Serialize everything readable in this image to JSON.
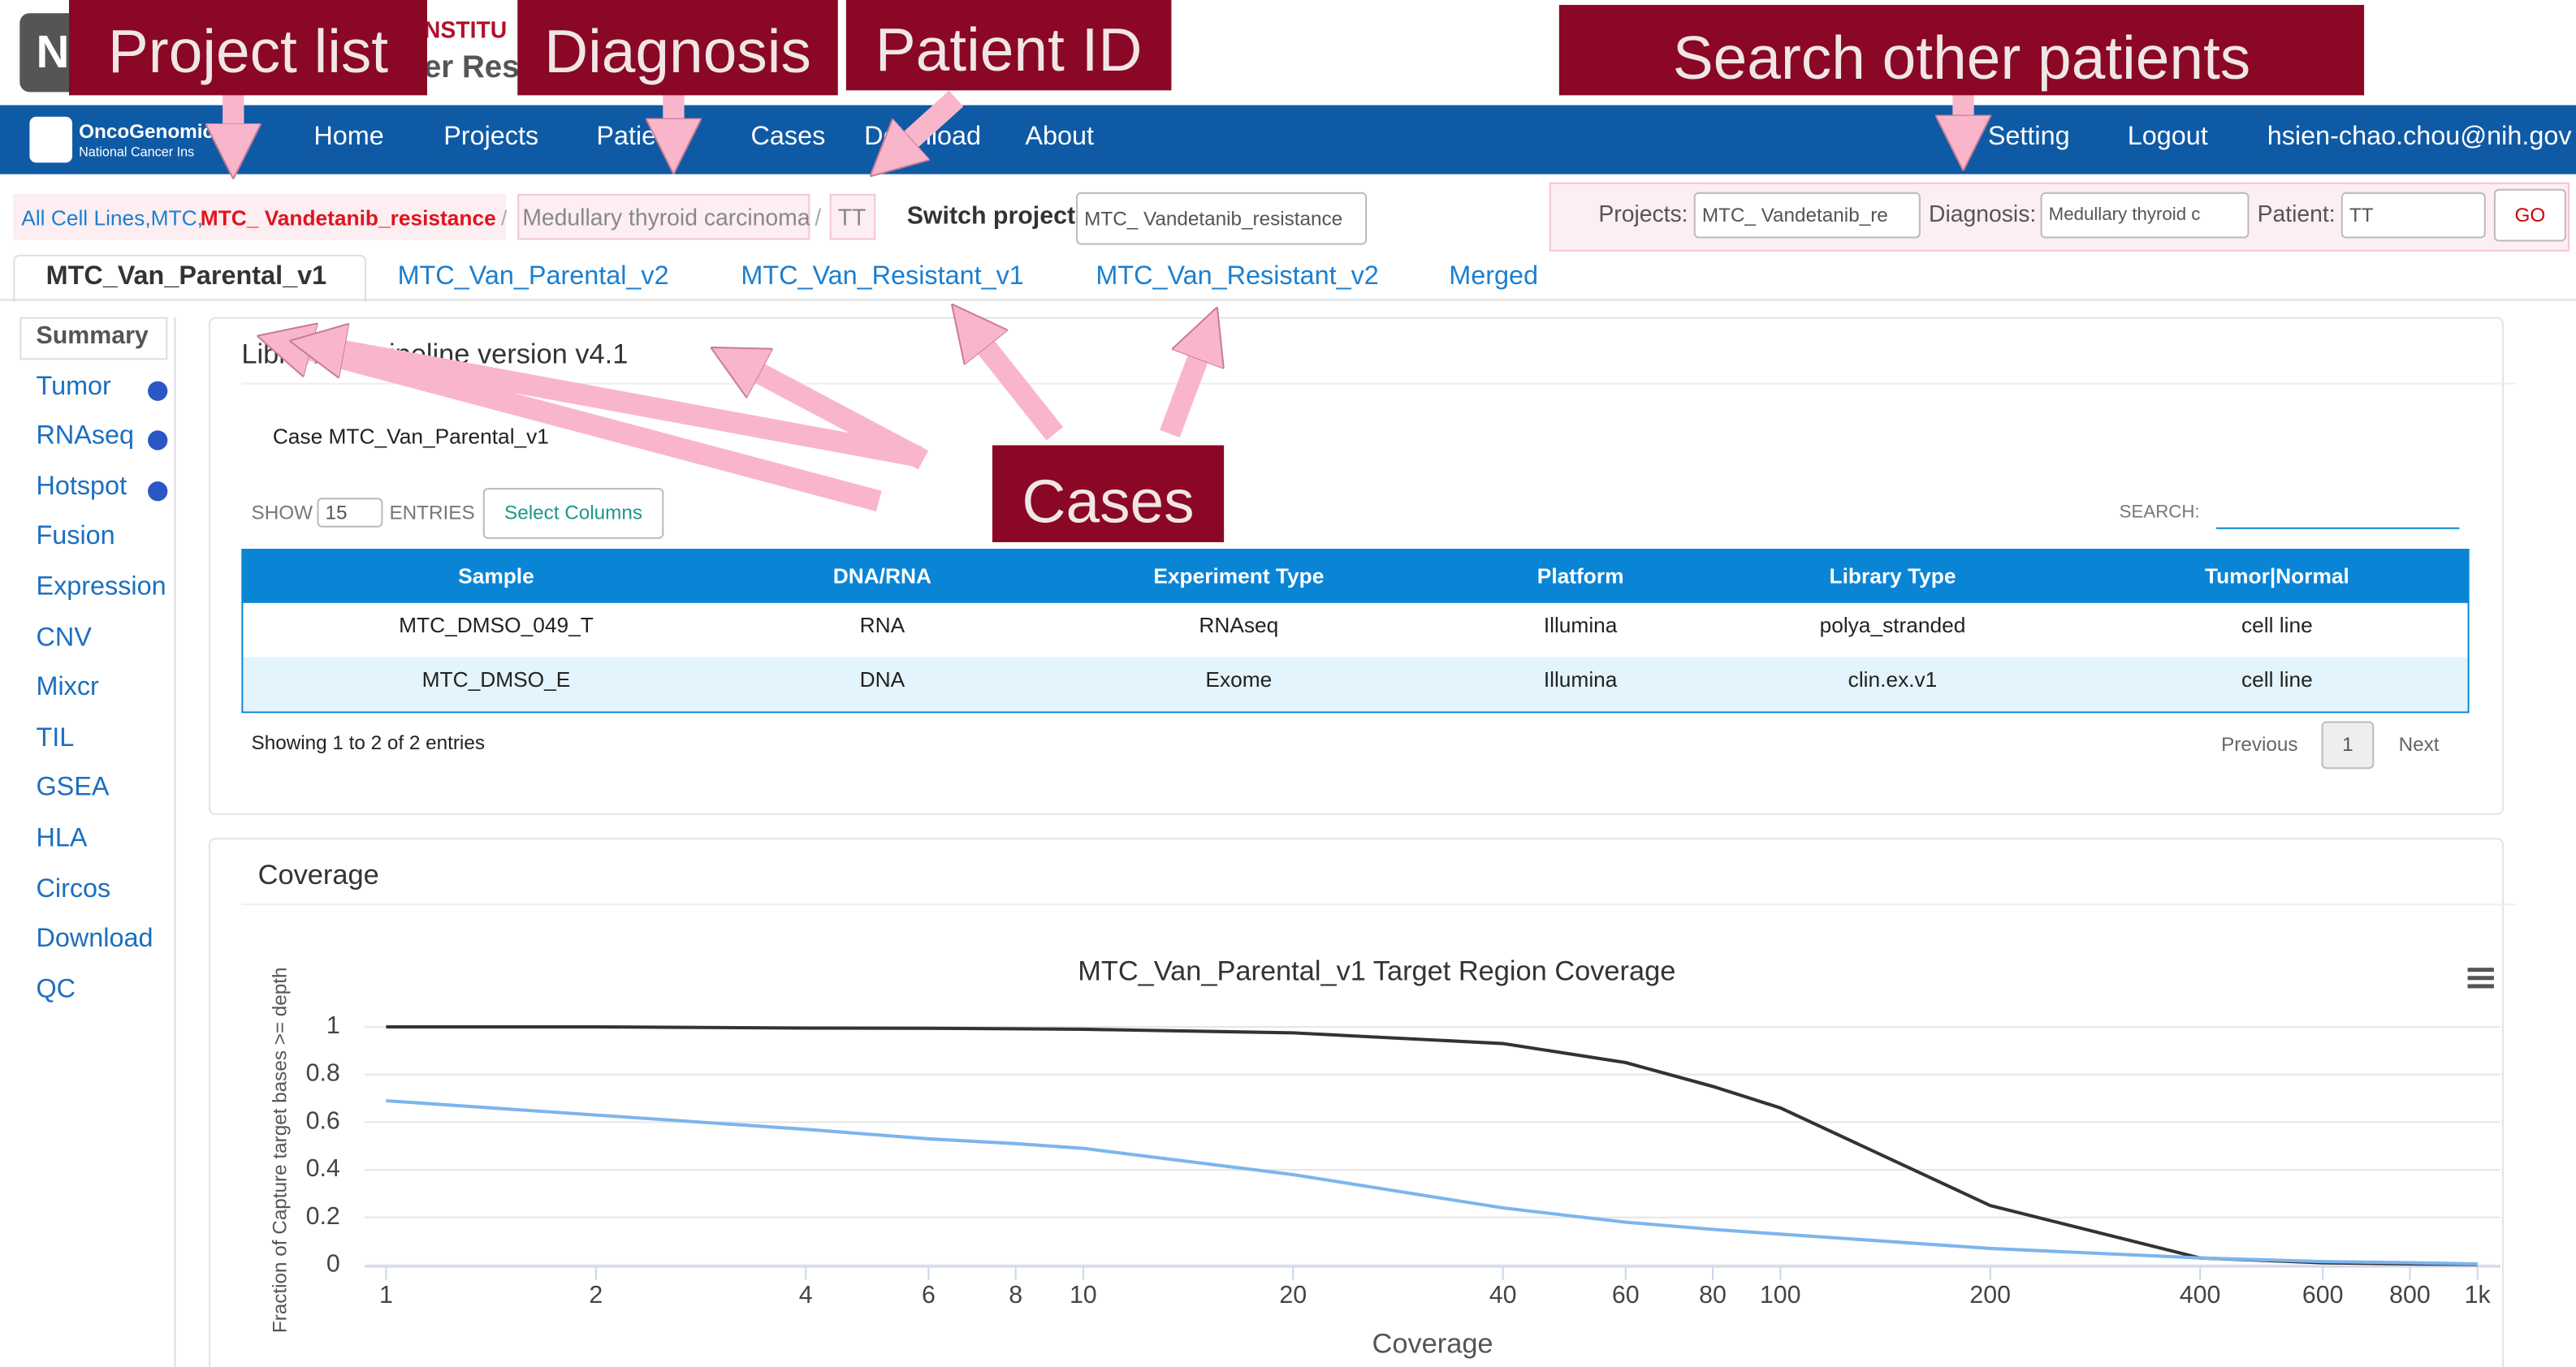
{
  "header": {
    "logo": "N",
    "institute_fragment": "NSTITU",
    "subtitle_fragment": "er Res"
  },
  "annotations": {
    "project_list": "Project list",
    "diagnosis": "Diagnosis",
    "patient_id": "Patient ID",
    "search": "Search other patients",
    "cases": "Cases"
  },
  "nav": {
    "brand": "OncoGenomic",
    "brand_sub": "National Cancer Ins",
    "items": [
      "Home",
      "Projects",
      "Patie",
      "Cases",
      "Download",
      "About"
    ],
    "right": [
      "Setting",
      "Logout",
      "hsien-chao.chou@nih.gov"
    ]
  },
  "breadcrumb": {
    "path": "All Cell Lines,MTC,",
    "project": "MTC_ Vandetanib_resistance",
    "sep": "/",
    "diagnosis": "Medullary thyroid carcinoma",
    "patient": "TT",
    "switch_label": "Switch project:",
    "switch_value": "MTC_ Vandetanib_resistance"
  },
  "search": {
    "projects_label": "Projects:",
    "projects_value": "MTC_ Vandetanib_re",
    "diagnosis_label": "Diagnosis:",
    "diagnosis_value": "Medullary thyroid c",
    "patient_label": "Patient:",
    "patient_value": "TT",
    "go": "GO"
  },
  "tabs": [
    "MTC_Van_Parental_v1",
    "MTC_Van_Parental_v2",
    "MTC_Van_Resistant_v1",
    "MTC_Van_Resistant_v2",
    "Merged"
  ],
  "sidebar": [
    "Summary",
    "Tumor",
    "RNAseq",
    "Hotspot",
    "Fusion",
    "Expression",
    "CNV",
    "Mixcr",
    "TIL",
    "GSEA",
    "HLA",
    "Circos",
    "Download",
    "QC"
  ],
  "libraries": {
    "title": "Libraries - pipeline version v4.1",
    "case": "Case MTC_Van_Parental_v1",
    "show": "SHOW",
    "page_size": "15",
    "entries": "ENTRIES",
    "select_columns": "Select Columns",
    "search": "SEARCH:",
    "table": {
      "columns": [
        "Sample",
        "DNA/RNA",
        "Experiment Type",
        "Platform",
        "Library Type",
        "Tumor|Normal"
      ],
      "rows": [
        [
          "MTC_DMSO_049_T",
          "RNA",
          "RNAseq",
          "Illumina",
          "polya_stranded",
          "cell line"
        ],
        [
          "MTC_DMSO_E",
          "DNA",
          "Exome",
          "Illumina",
          "clin.ex.v1",
          "cell line"
        ]
      ]
    },
    "info": "Showing 1 to 2 of 2 entries",
    "previous": "Previous",
    "page": "1",
    "next": "Next"
  },
  "coverage": {
    "title": "Coverage"
  },
  "chart_data": {
    "type": "line",
    "title": "MTC_Van_Parental_v1 Target Region Coverage",
    "x_label": "Coverage",
    "y_label": "Fraction of Capture target bases >= depth",
    "log_x": true,
    "grid": true,
    "x": [
      1,
      2,
      4,
      6,
      8,
      10,
      20,
      40,
      60,
      80,
      100,
      200,
      400,
      600,
      800,
      1000
    ],
    "series": [
      {
        "color": "#333333",
        "values": [
          1,
          1,
          0.995,
          0.994,
          0.992,
          0.99,
          0.975,
          0.93,
          0.85,
          0.75,
          0.66,
          0.25,
          0.03,
          0.01,
          0.005,
          0.003
        ]
      },
      {
        "color": "#7cb5ec",
        "values": [
          0.69,
          0.63,
          0.57,
          0.53,
          0.51,
          0.49,
          0.38,
          0.24,
          0.18,
          0.15,
          0.13,
          0.07,
          0.03,
          0.015,
          0.01,
          0.005
        ]
      }
    ],
    "xlim": [
      1,
      1000
    ],
    "ylim": [
      0,
      1
    ],
    "xticks": [
      1,
      2,
      4,
      6,
      8,
      10,
      20,
      40,
      60,
      80,
      100,
      200,
      400,
      600,
      800,
      {
        "value": 1000,
        "label": "1k"
      }
    ],
    "yticks": [
      0,
      0.2,
      0.4,
      0.6,
      0.8,
      1
    ]
  }
}
